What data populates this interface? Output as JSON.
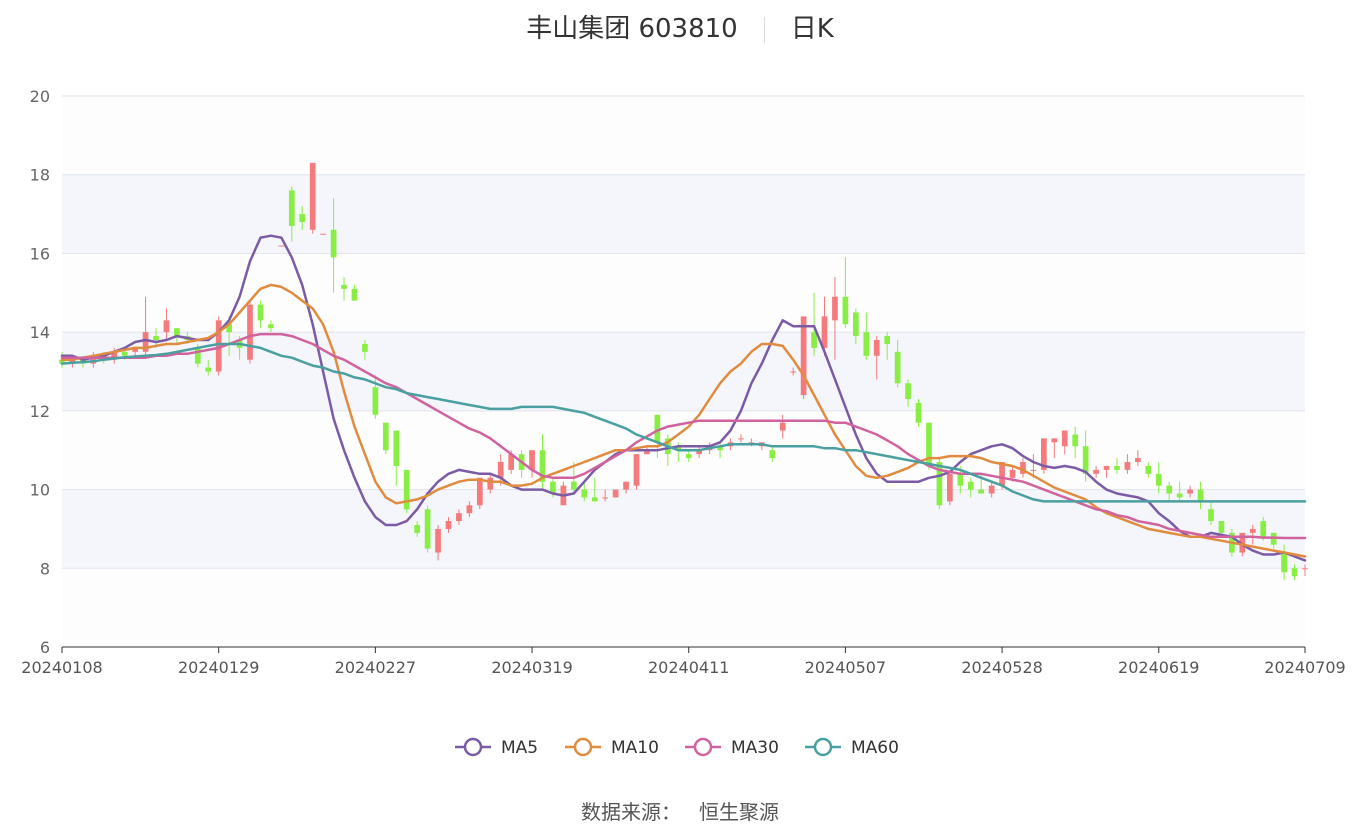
{
  "header": {
    "title_left": "丰山集团 603810",
    "title_right": "日K"
  },
  "footer": {
    "source_label": "数据来源：",
    "source_value": "恒生聚源"
  },
  "chart_data": {
    "type": "candlestick",
    "title": "丰山集团 603810 日K",
    "ylim": [
      6,
      20
    ],
    "y_ticks": [
      6,
      8,
      10,
      12,
      14,
      16,
      18,
      20
    ],
    "x_tick_labels": [
      "20240108",
      "20240129",
      "20240227",
      "20240319",
      "20240411",
      "20240507",
      "20240528",
      "20240619",
      "20240709"
    ],
    "x_tick_indices": [
      0,
      15,
      30,
      45,
      60,
      75,
      90,
      105,
      119
    ],
    "x_count": 120,
    "legend_position": "bottom",
    "up_color": "#f47a7c",
    "down_color": "#88ee44",
    "candles": [
      [
        13.3,
        13.2,
        13.5,
        13.1
      ],
      [
        13.2,
        13.3,
        13.4,
        13.1
      ],
      [
        13.3,
        13.2,
        13.4,
        13.1
      ],
      [
        13.2,
        13.4,
        13.5,
        13.1
      ],
      [
        13.4,
        13.3,
        13.5,
        13.2
      ],
      [
        13.3,
        13.5,
        13.6,
        13.2
      ],
      [
        13.5,
        13.4,
        13.6,
        13.3
      ],
      [
        13.5,
        13.6,
        13.6,
        13.4
      ],
      [
        13.5,
        14.0,
        14.9,
        13.4
      ],
      [
        13.9,
        13.8,
        14.1,
        13.6
      ],
      [
        14.0,
        14.3,
        14.6,
        13.8
      ],
      [
        14.1,
        13.9,
        14.1,
        13.7
      ],
      [
        13.9,
        13.8,
        14.0,
        13.7
      ],
      [
        13.6,
        13.2,
        13.7,
        13.1
      ],
      [
        13.1,
        13.0,
        13.3,
        12.9
      ],
      [
        13.0,
        14.3,
        14.4,
        12.9
      ],
      [
        14.2,
        14.0,
        14.4,
        13.4
      ],
      [
        13.8,
        13.6,
        13.9,
        13.3
      ],
      [
        13.3,
        14.7,
        14.8,
        13.2
      ],
      [
        14.7,
        14.3,
        14.8,
        14.1
      ],
      [
        14.2,
        14.1,
        14.3,
        14.0
      ],
      [
        16.2,
        16.2,
        16.2,
        16.2
      ],
      [
        17.6,
        16.7,
        17.7,
        16.3
      ],
      [
        17.0,
        16.8,
        17.2,
        16.6
      ],
      [
        16.6,
        18.3,
        18.3,
        16.5
      ],
      [
        16.5,
        16.5,
        16.5,
        16.5
      ],
      [
        16.6,
        15.9,
        17.4,
        15.0
      ],
      [
        15.2,
        15.1,
        15.4,
        14.8
      ],
      [
        15.1,
        14.8,
        15.2,
        14.8
      ],
      [
        13.7,
        13.5,
        13.8,
        13.3
      ],
      [
        12.6,
        11.9,
        12.9,
        11.8
      ],
      [
        11.7,
        11.0,
        11.7,
        10.9
      ],
      [
        11.5,
        10.6,
        11.5,
        10.1
      ],
      [
        10.5,
        9.5,
        10.5,
        9.4
      ],
      [
        9.1,
        8.9,
        9.2,
        8.8
      ],
      [
        9.5,
        8.5,
        9.6,
        8.4
      ],
      [
        8.4,
        9.0,
        9.1,
        8.2
      ],
      [
        9.0,
        9.2,
        9.3,
        8.9
      ],
      [
        9.2,
        9.4,
        9.5,
        9.1
      ],
      [
        9.4,
        9.6,
        9.7,
        9.3
      ],
      [
        9.6,
        10.3,
        10.3,
        9.5
      ],
      [
        10.0,
        10.3,
        10.4,
        9.9
      ],
      [
        10.3,
        10.7,
        10.9,
        10.1
      ],
      [
        10.5,
        10.9,
        11.0,
        10.4
      ],
      [
        10.9,
        10.5,
        11.0,
        10.3
      ],
      [
        10.5,
        11.0,
        11.0,
        10.3
      ],
      [
        11.0,
        10.2,
        11.4,
        10.0
      ],
      [
        10.2,
        9.9,
        10.3,
        9.8
      ],
      [
        9.6,
        10.1,
        10.2,
        9.6
      ],
      [
        10.2,
        10.0,
        10.7,
        9.9
      ],
      [
        10.0,
        9.8,
        10.2,
        9.7
      ],
      [
        9.8,
        9.7,
        10.3,
        9.7
      ],
      [
        9.8,
        9.8,
        10.0,
        9.7
      ],
      [
        9.8,
        10.0,
        10.0,
        9.8
      ],
      [
        10.0,
        10.2,
        10.2,
        9.9
      ],
      [
        10.1,
        10.9,
        10.9,
        10.0
      ],
      [
        10.9,
        11.0,
        11.1,
        10.9
      ],
      [
        11.9,
        11.2,
        11.9,
        10.8
      ],
      [
        11.3,
        10.9,
        11.4,
        10.6
      ],
      [
        11.1,
        11.0,
        11.2,
        10.7
      ],
      [
        10.9,
        10.8,
        11.0,
        10.7
      ],
      [
        10.9,
        11.0,
        11.1,
        10.8
      ],
      [
        11.0,
        11.1,
        11.2,
        10.9
      ],
      [
        11.1,
        11.0,
        11.2,
        10.8
      ],
      [
        11.1,
        11.2,
        11.3,
        11.0
      ],
      [
        11.3,
        11.3,
        11.4,
        11.2
      ],
      [
        11.2,
        11.2,
        11.3,
        11.1
      ],
      [
        11.1,
        11.2,
        11.2,
        11.0
      ],
      [
        11.0,
        10.8,
        11.1,
        10.7
      ],
      [
        11.5,
        11.7,
        11.9,
        11.3
      ],
      [
        13.0,
        13.0,
        13.1,
        12.9
      ],
      [
        12.4,
        14.4,
        14.4,
        12.3
      ],
      [
        14.0,
        13.6,
        15.0,
        13.4
      ],
      [
        13.6,
        14.4,
        14.9,
        13.4
      ],
      [
        14.3,
        14.9,
        15.4,
        13.3
      ],
      [
        14.9,
        14.2,
        15.9,
        14.1
      ],
      [
        14.5,
        13.9,
        14.6,
        13.7
      ],
      [
        14.0,
        13.4,
        14.5,
        13.3
      ],
      [
        13.4,
        13.8,
        13.9,
        12.8
      ],
      [
        13.9,
        13.7,
        14.0,
        13.3
      ],
      [
        13.5,
        12.7,
        13.8,
        12.6
      ],
      [
        12.7,
        12.3,
        12.8,
        12.1
      ],
      [
        12.2,
        11.7,
        12.3,
        11.6
      ],
      [
        11.7,
        10.6,
        11.7,
        10.5
      ],
      [
        10.7,
        9.6,
        10.8,
        9.5
      ],
      [
        9.7,
        10.4,
        10.4,
        9.6
      ],
      [
        10.4,
        10.1,
        10.6,
        9.9
      ],
      [
        10.2,
        10.0,
        10.3,
        9.8
      ],
      [
        10.0,
        9.9,
        10.4,
        9.9
      ],
      [
        9.9,
        10.1,
        10.2,
        9.8
      ],
      [
        10.1,
        10.7,
        10.7,
        10.0
      ],
      [
        10.3,
        10.5,
        10.6,
        10.2
      ],
      [
        10.4,
        10.7,
        10.8,
        10.3
      ],
      [
        10.5,
        10.5,
        10.9,
        10.3
      ],
      [
        10.5,
        11.3,
        11.3,
        10.4
      ],
      [
        11.2,
        11.3,
        11.3,
        10.8
      ],
      [
        11.1,
        11.5,
        11.5,
        10.9
      ],
      [
        11.4,
        11.1,
        11.6,
        10.8
      ],
      [
        11.1,
        10.4,
        11.5,
        10.2
      ],
      [
        10.4,
        10.5,
        10.6,
        10.3
      ],
      [
        10.5,
        10.6,
        10.6,
        10.3
      ],
      [
        10.6,
        10.5,
        10.8,
        10.4
      ],
      [
        10.5,
        10.7,
        10.9,
        10.4
      ],
      [
        10.7,
        10.8,
        11.0,
        10.6
      ],
      [
        10.6,
        10.4,
        10.7,
        10.3
      ],
      [
        10.4,
        10.1,
        10.7,
        9.9
      ],
      [
        10.1,
        9.9,
        10.2,
        9.7
      ],
      [
        9.9,
        9.8,
        10.2,
        9.7
      ],
      [
        9.9,
        10.0,
        10.1,
        9.8
      ],
      [
        10.0,
        9.7,
        10.2,
        9.5
      ],
      [
        9.5,
        9.2,
        9.7,
        9.1
      ],
      [
        9.2,
        8.9,
        9.2,
        8.8
      ],
      [
        8.9,
        8.4,
        9.0,
        8.3
      ],
      [
        8.4,
        8.9,
        8.9,
        8.3
      ],
      [
        8.9,
        9.0,
        9.1,
        8.6
      ],
      [
        9.2,
        8.8,
        9.3,
        8.7
      ],
      [
        8.9,
        8.6,
        8.9,
        8.5
      ],
      [
        8.4,
        7.9,
        8.6,
        7.7
      ],
      [
        8.0,
        7.8,
        8.1,
        7.7
      ],
      [
        8.0,
        8.0,
        8.1,
        7.8
      ]
    ],
    "series": [
      {
        "name": "MA5",
        "color": "#7b5ba6",
        "values": [
          13.4,
          13.4,
          13.3,
          13.35,
          13.4,
          13.5,
          13.6,
          13.75,
          13.8,
          13.75,
          13.8,
          13.9,
          13.85,
          13.8,
          13.8,
          14.0,
          14.3,
          14.9,
          15.8,
          16.4,
          16.45,
          16.4,
          15.9,
          15.2,
          14.2,
          13.0,
          11.8,
          11.0,
          10.3,
          9.7,
          9.3,
          9.1,
          9.1,
          9.2,
          9.5,
          9.9,
          10.2,
          10.4,
          10.5,
          10.45,
          10.4,
          10.4,
          10.3,
          10.1,
          10.0,
          10.0,
          10.0,
          9.9,
          9.85,
          9.9,
          10.2,
          10.5,
          10.7,
          10.9,
          11.0,
          11.0,
          11.0,
          11.0,
          11.05,
          11.1,
          11.1,
          11.1,
          11.1,
          11.2,
          11.5,
          12.0,
          12.7,
          13.2,
          13.8,
          14.3,
          14.15,
          14.15,
          14.15,
          13.5,
          12.8,
          12.1,
          11.4,
          10.8,
          10.4,
          10.2,
          10.2,
          10.2,
          10.2,
          10.3,
          10.35,
          10.45,
          10.7,
          10.9,
          11.0,
          11.1,
          11.15,
          11.05,
          10.85,
          10.7,
          10.6,
          10.55,
          10.6,
          10.55,
          10.45,
          10.2,
          10.0,
          9.9,
          9.85,
          9.8,
          9.7,
          9.4,
          9.2,
          8.95,
          8.8,
          8.8,
          8.9,
          8.85,
          8.8,
          8.6,
          8.45,
          8.35,
          8.35,
          8.4,
          8.3,
          8.2
        ]
      },
      {
        "name": "MA10",
        "color": "#e08b3e",
        "values": [
          13.3,
          13.3,
          13.35,
          13.4,
          13.45,
          13.5,
          13.55,
          13.6,
          13.6,
          13.65,
          13.7,
          13.7,
          13.75,
          13.8,
          13.85,
          14.0,
          14.2,
          14.5,
          14.8,
          15.1,
          15.2,
          15.15,
          15.0,
          14.8,
          14.6,
          14.2,
          13.5,
          12.5,
          11.6,
          10.9,
          10.2,
          9.8,
          9.65,
          9.7,
          9.75,
          9.85,
          10.0,
          10.1,
          10.2,
          10.25,
          10.25,
          10.2,
          10.2,
          10.1,
          10.1,
          10.15,
          10.3,
          10.4,
          10.5,
          10.6,
          10.7,
          10.8,
          10.9,
          11.0,
          11.0,
          11.05,
          11.1,
          11.1,
          11.2,
          11.4,
          11.6,
          11.9,
          12.3,
          12.7,
          13.0,
          13.2,
          13.5,
          13.7,
          13.7,
          13.65,
          13.3,
          12.9,
          12.4,
          11.9,
          11.4,
          11.0,
          10.6,
          10.35,
          10.3,
          10.35,
          10.45,
          10.55,
          10.7,
          10.8,
          10.8,
          10.85,
          10.85,
          10.85,
          10.8,
          10.7,
          10.65,
          10.6,
          10.5,
          10.35,
          10.2,
          10.05,
          9.95,
          9.85,
          9.75,
          9.55,
          9.4,
          9.3,
          9.2,
          9.1,
          9.0,
          8.95,
          8.9,
          8.85,
          8.8,
          8.8,
          8.75,
          8.7,
          8.65,
          8.6,
          8.55,
          8.5,
          8.45,
          8.4,
          8.35,
          8.3
        ]
      },
      {
        "name": "MA30",
        "color": "#d0639e",
        "values": [
          13.35,
          13.35,
          13.35,
          13.35,
          13.35,
          13.35,
          13.35,
          13.35,
          13.35,
          13.4,
          13.4,
          13.45,
          13.45,
          13.5,
          13.55,
          13.6,
          13.7,
          13.8,
          13.9,
          13.95,
          13.95,
          13.95,
          13.9,
          13.8,
          13.7,
          13.55,
          13.4,
          13.3,
          13.15,
          13.0,
          12.85,
          12.7,
          12.6,
          12.45,
          12.3,
          12.15,
          12.0,
          11.85,
          11.7,
          11.55,
          11.45,
          11.3,
          11.1,
          10.9,
          10.7,
          10.5,
          10.35,
          10.3,
          10.3,
          10.3,
          10.4,
          10.55,
          10.7,
          10.85,
          11.0,
          11.2,
          11.35,
          11.5,
          11.6,
          11.65,
          11.7,
          11.75,
          11.75,
          11.75,
          11.75,
          11.75,
          11.75,
          11.75,
          11.75,
          11.75,
          11.75,
          11.75,
          11.75,
          11.75,
          11.7,
          11.7,
          11.6,
          11.5,
          11.4,
          11.25,
          11.1,
          10.9,
          10.75,
          10.6,
          10.5,
          10.45,
          10.4,
          10.4,
          10.4,
          10.35,
          10.3,
          10.25,
          10.2,
          10.1,
          10.0,
          9.9,
          9.8,
          9.7,
          9.6,
          9.5,
          9.45,
          9.35,
          9.3,
          9.2,
          9.15,
          9.1,
          9.0,
          8.95,
          8.9,
          8.85,
          8.8,
          8.8,
          8.8,
          8.8,
          8.8,
          8.78,
          8.78,
          8.77,
          8.77,
          8.77
        ]
      },
      {
        "name": "MA60",
        "color": "#4aa0a0",
        "values": [
          13.2,
          13.22,
          13.24,
          13.26,
          13.3,
          13.33,
          13.36,
          13.38,
          13.4,
          13.42,
          13.45,
          13.5,
          13.55,
          13.6,
          13.65,
          13.7,
          13.7,
          13.7,
          13.65,
          13.6,
          13.5,
          13.4,
          13.35,
          13.25,
          13.15,
          13.1,
          13.0,
          12.95,
          12.85,
          12.8,
          12.7,
          12.6,
          12.55,
          12.45,
          12.4,
          12.35,
          12.3,
          12.25,
          12.2,
          12.15,
          12.1,
          12.05,
          12.05,
          12.05,
          12.1,
          12.1,
          12.1,
          12.1,
          12.05,
          12.0,
          11.95,
          11.85,
          11.75,
          11.65,
          11.55,
          11.4,
          11.3,
          11.2,
          11.1,
          11.0,
          11.0,
          11.0,
          11.05,
          11.1,
          11.15,
          11.15,
          11.15,
          11.15,
          11.1,
          11.1,
          11.1,
          11.1,
          11.1,
          11.05,
          11.05,
          11.0,
          11.0,
          10.95,
          10.9,
          10.85,
          10.8,
          10.75,
          10.7,
          10.65,
          10.6,
          10.55,
          10.5,
          10.4,
          10.3,
          10.2,
          10.1,
          9.95,
          9.85,
          9.75,
          9.7,
          9.7,
          9.7,
          9.7,
          9.7,
          9.7,
          9.7,
          9.7,
          9.7,
          9.7,
          9.7,
          9.7,
          9.7,
          9.7,
          9.7,
          9.7,
          9.7,
          9.7,
          9.7,
          9.7,
          9.7,
          9.7,
          9.7,
          9.7,
          9.7,
          9.7
        ]
      }
    ]
  }
}
